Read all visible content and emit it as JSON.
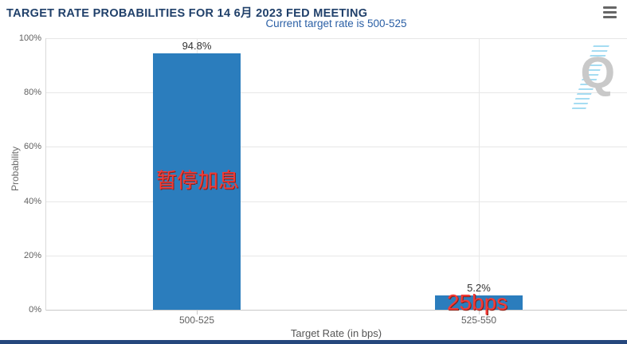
{
  "menu": {
    "icon": "hamburger-icon"
  },
  "chart_data": {
    "type": "bar",
    "title": "TARGET RATE PROBABILITIES FOR 14 6月 2023 FED MEETING",
    "subtitle": "Current target rate is 500-525",
    "categories": [
      "500-525",
      "525-550"
    ],
    "values": [
      94.8,
      5.2
    ],
    "value_labels": [
      "94.8%",
      "5.2%"
    ],
    "annotations": [
      {
        "text": "暂停加息",
        "category": "500-525"
      },
      {
        "text": "25bps",
        "category": "525-550"
      }
    ],
    "xlabel": "Target Rate (in bps)",
    "ylabel": "Probability",
    "ylim": [
      0,
      100
    ],
    "yticks": [
      "0%",
      "20%",
      "40%",
      "60%",
      "80%",
      "100%"
    ],
    "grid": true,
    "legend": false,
    "watermark": "Q",
    "colors": {
      "bar": "#2b7dbd",
      "title": "#20406a",
      "subtitle": "#2a5fa5",
      "annotation": "#f23b37",
      "grid": "#e7e7e7",
      "axis": "#c9c9c9",
      "tick_label": "#5f5f5f"
    }
  }
}
